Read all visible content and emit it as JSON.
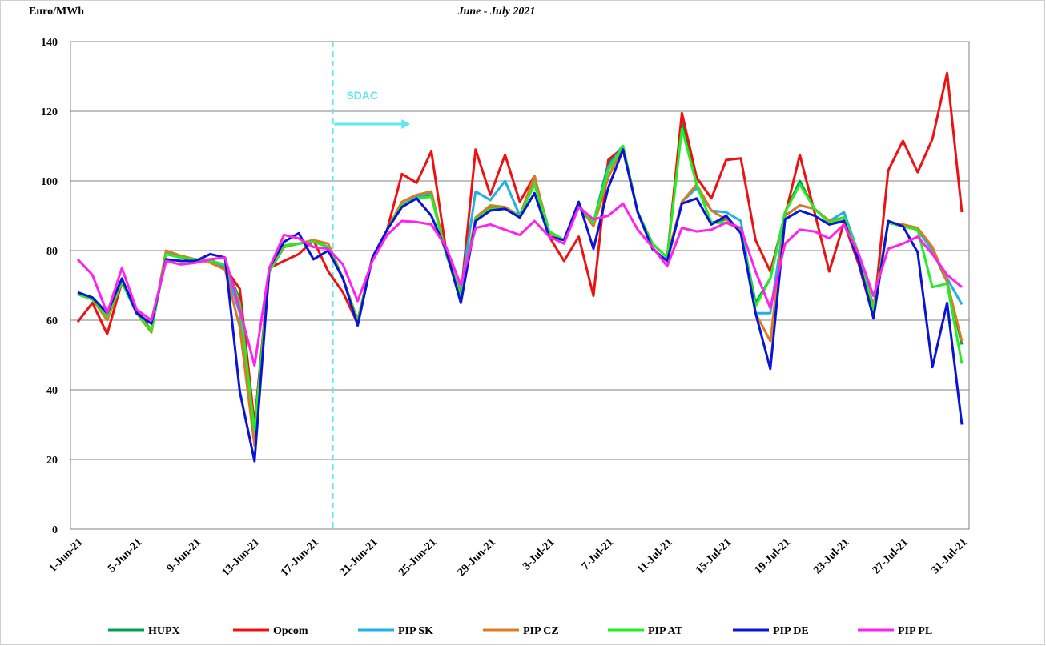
{
  "chart_data": {
    "type": "line",
    "subtitle": "June - July 2021",
    "y_label": "Euro/MWh",
    "annotation": "SDAC",
    "categories": [
      "1-Jun-21",
      null,
      null,
      null,
      "5-Jun-21",
      null,
      null,
      null,
      "9-Jun-21",
      null,
      null,
      null,
      "13-Jun-21",
      null,
      null,
      null,
      "17-Jun-21",
      null,
      null,
      null,
      "21-Jun-21",
      null,
      null,
      null,
      "25-Jun-21",
      null,
      null,
      null,
      "29-Jun-21",
      null,
      null,
      null,
      "3-Jul-21",
      null,
      null,
      null,
      "7-Jul-21",
      null,
      null,
      null,
      "11-Jul-21",
      null,
      null,
      null,
      "15-Jul-21",
      null,
      null,
      null,
      "19-Jul-21",
      null,
      null,
      null,
      "23-Jul-21",
      null,
      null,
      null,
      "27-Jul-21",
      null,
      null,
      null,
      "31-Jul-21"
    ],
    "ylim": [
      0,
      140
    ],
    "yticks": [
      0,
      20,
      40,
      60,
      80,
      100,
      120,
      140
    ],
    "grid": true,
    "series": [
      {
        "name": "HUPX",
        "color": "#00a050",
        "values": [
          67.5,
          66,
          61,
          71,
          62,
          57,
          79,
          78,
          77.5,
          77,
          76,
          66,
          30,
          74,
          81,
          82,
          82.5,
          81,
          72,
          59.5,
          78,
          86,
          93,
          95.5,
          96,
          79,
          67,
          89,
          92.5,
          92,
          90,
          101,
          85.5,
          83,
          93,
          88,
          105,
          110,
          91,
          82,
          78,
          117,
          99,
          88,
          89,
          86,
          65,
          72,
          91,
          100,
          92,
          88,
          89.5,
          79,
          63,
          88,
          87,
          86,
          80,
          71,
          53
        ]
      },
      {
        "name": "Opcom",
        "color": "#ee1111",
        "values": [
          59.5,
          65,
          56,
          71,
          63,
          57,
          80,
          78,
          77,
          77.5,
          75,
          69,
          30,
          75,
          77,
          79,
          83,
          74,
          68,
          59,
          78,
          86,
          102,
          99.5,
          108.5,
          80,
          67,
          109,
          96,
          107.5,
          94,
          101.5,
          84,
          77,
          84,
          67,
          106,
          109.5,
          91,
          82,
          78,
          119.5,
          101,
          95,
          106,
          106.5,
          83,
          74,
          90,
          107.5,
          91,
          74,
          88,
          76,
          61,
          103,
          111.5,
          102.5,
          112,
          131,
          91
        ]
      },
      {
        "name": "PIP SK",
        "color": "#1fb0e8",
        "values": [
          67.5,
          66,
          61,
          71,
          62,
          57,
          79.5,
          78,
          77.5,
          77,
          75.5,
          62,
          28,
          74,
          81,
          82,
          83,
          81,
          72,
          60,
          78,
          86,
          93,
          95.5,
          96.5,
          79,
          68,
          97,
          94.5,
          100,
          90,
          101,
          85,
          83,
          93,
          87.5,
          104,
          110,
          91,
          82,
          78,
          94,
          98,
          91.5,
          91,
          88.5,
          62,
          62,
          90,
          93,
          92,
          88.5,
          91,
          79,
          64,
          88,
          87.5,
          86,
          80,
          72,
          64.5
        ]
      },
      {
        "name": "PIP CZ",
        "color": "#e07820",
        "values": [
          67.5,
          66,
          60,
          71,
          62,
          56.5,
          80,
          78.5,
          77.5,
          76.5,
          74.5,
          58,
          24,
          74,
          81,
          82,
          83,
          82,
          72,
          60,
          78,
          86,
          94,
          96,
          97,
          79,
          67.5,
          89.5,
          93,
          92.5,
          90,
          101.5,
          85,
          83,
          93,
          87,
          101,
          110,
          91,
          82,
          78,
          94,
          99,
          91.5,
          89,
          86,
          62,
          54,
          90,
          93,
          92,
          88.5,
          89.5,
          79,
          64,
          88,
          87.5,
          86.5,
          81,
          71,
          54
        ]
      },
      {
        "name": "PIP AT",
        "color": "#22ee22",
        "values": [
          67.5,
          66,
          61,
          71,
          62,
          57,
          79,
          78,
          77.5,
          77,
          76,
          65,
          28,
          74,
          81.5,
          82,
          82.5,
          81,
          72,
          59.5,
          78,
          86,
          93,
          95,
          95.5,
          79,
          67,
          89,
          92,
          92,
          90,
          99,
          85.5,
          83,
          93,
          88,
          103,
          110,
          91,
          82,
          78,
          115,
          99,
          88,
          88,
          86,
          64,
          72,
          91,
          99,
          92,
          88,
          89.5,
          79,
          63,
          88,
          87,
          86,
          69.5,
          70.5,
          47.5
        ]
      },
      {
        "name": "PIP DE",
        "color": "#0a14d8",
        "values": [
          68,
          66.5,
          62,
          72,
          62,
          59,
          77.5,
          77,
          77,
          79,
          78,
          39.5,
          19.5,
          75,
          82.5,
          85,
          77.5,
          80,
          72,
          58.5,
          78,
          86,
          92.5,
          95,
          90,
          80,
          65,
          88.5,
          91.5,
          92,
          89.5,
          96.5,
          84,
          83,
          94,
          80.5,
          98,
          109,
          91,
          80.5,
          77,
          93.5,
          95,
          87.5,
          90,
          85,
          62,
          46,
          89,
          91.5,
          90,
          87.5,
          88.5,
          77,
          60.5,
          88.5,
          87,
          79.5,
          46.5,
          65,
          30
        ]
      },
      {
        "name": "PIP PL",
        "color": "#ff22ee",
        "values": [
          77.5,
          73,
          62,
          75,
          63,
          60,
          77,
          76,
          76.5,
          77.5,
          78,
          63,
          47,
          75,
          84.5,
          83.5,
          81,
          80.5,
          76,
          65.5,
          77,
          84.5,
          88.5,
          88.2,
          87.5,
          81,
          70,
          86.5,
          87.5,
          86,
          84.5,
          88.5,
          84,
          82,
          92.5,
          89,
          90,
          93.5,
          86,
          81,
          75.5,
          86.5,
          85.5,
          86,
          88,
          86.5,
          74,
          63.5,
          82,
          86,
          85.5,
          83.5,
          87.5,
          79,
          67,
          80.5,
          82,
          84,
          79,
          73,
          69.5
        ]
      }
    ]
  }
}
